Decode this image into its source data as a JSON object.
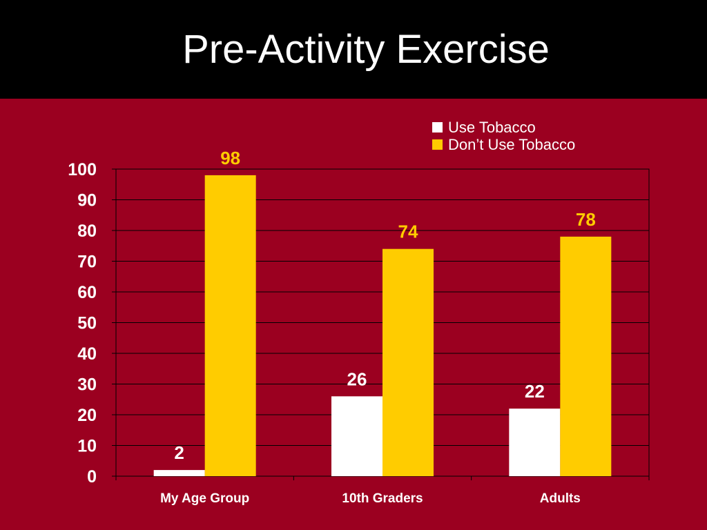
{
  "title": "Pre-Activity Exercise",
  "colors": {
    "background": "#9b0020",
    "title_bar": "#000000",
    "use_tobacco": "#ffffff",
    "dont_use_tobacco": "#ffcc00"
  },
  "chart_data": {
    "type": "bar",
    "categories": [
      "My Age Group",
      "10th Graders",
      "Adults"
    ],
    "series": [
      {
        "name": "Use Tobacco",
        "values": [
          2,
          26,
          22
        ],
        "color": "#ffffff"
      },
      {
        "name": "Don’t Use Tobacco",
        "values": [
          98,
          74,
          78
        ],
        "color": "#ffcc00"
      }
    ],
    "yticks": [
      "0",
      "10",
      "20",
      "30",
      "40",
      "50",
      "60",
      "70",
      "80",
      "90",
      "100"
    ],
    "ylim": [
      0,
      100
    ],
    "grid": true,
    "legend_position": "top-right",
    "data_labels": true
  }
}
